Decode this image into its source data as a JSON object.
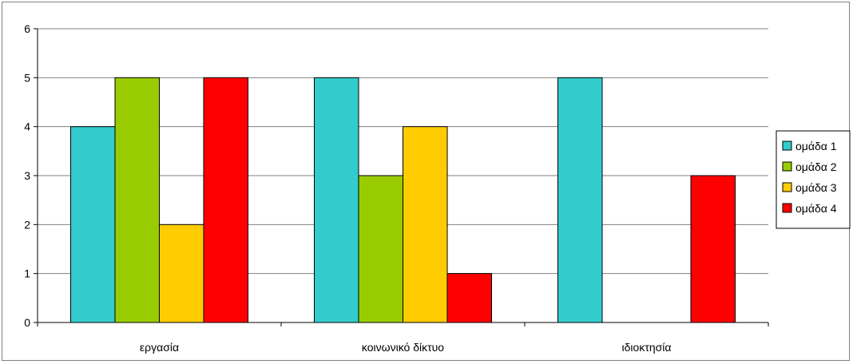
{
  "chart_data": {
    "type": "bar",
    "categories": [
      "εργασία",
      "κοινωνικό δίκτυο",
      "ιδιοκτησία"
    ],
    "series": [
      {
        "name": "ομάδα 1",
        "color": "#33CCCC",
        "values": [
          4,
          5,
          5
        ]
      },
      {
        "name": "ομάδα 2",
        "color": "#99CC00",
        "values": [
          5,
          3,
          0
        ]
      },
      {
        "name": "ομάδα 3",
        "color": "#FFCC00",
        "values": [
          2,
          4,
          0
        ]
      },
      {
        "name": "ομάδα 4",
        "color": "#FF0000",
        "values": [
          5,
          1,
          3
        ]
      }
    ],
    "yticks": [
      "0",
      "1",
      "2",
      "3",
      "4",
      "5",
      "6"
    ],
    "ylim": [
      0,
      6
    ],
    "grid": true,
    "legend_position": "right"
  }
}
